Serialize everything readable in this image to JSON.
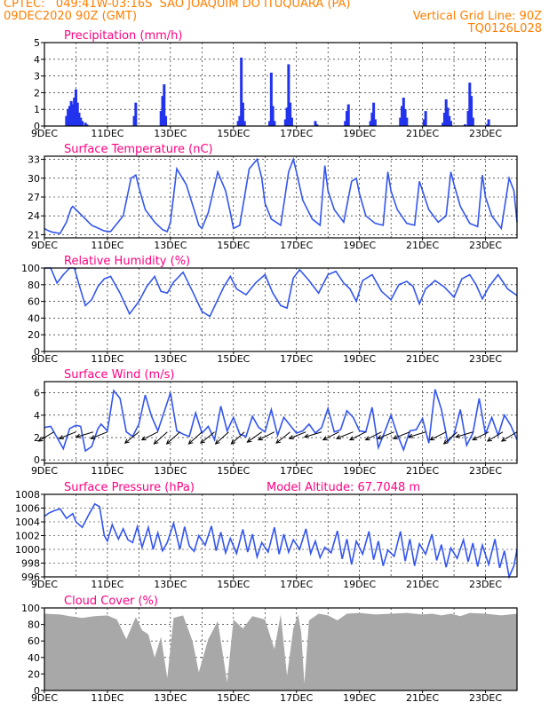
{
  "header": {
    "line1": "CPTEC:   049:41W-03:16S  SAO JOAQUIM DO ITUQUARA (PA)",
    "line2_left": "09DEC2020 90Z (GMT)",
    "line2_right": "Vertical Grid Line: 90Z",
    "line3_right": "TQ0126L028"
  },
  "x_axis": {
    "labels": [
      "9DEC",
      "11DEC",
      "13DEC",
      "15DEC",
      "17DEC",
      "19DEC",
      "21DEC",
      "23DEC"
    ],
    "label_days": [
      0,
      2,
      4,
      6,
      8,
      10,
      12,
      14
    ],
    "total_days": 15,
    "vertical_grid": "90Z"
  },
  "colors": {
    "line": "#3355ee",
    "bars": "#2233ee",
    "cloud": "#a8a8a8",
    "title": "#ff0080",
    "header": "#ff7f00"
  },
  "chart_data": [
    {
      "type": "bar",
      "title": "Precipitation (mm/h)",
      "ylim": [
        0,
        5
      ],
      "yticks": [
        0,
        1,
        2,
        3,
        4,
        5
      ],
      "x_unit": "days since 09DEC 00Z",
      "x": [
        0.7,
        0.75,
        0.8,
        0.85,
        0.9,
        0.95,
        1.0,
        1.05,
        1.1,
        1.15,
        1.2,
        1.3,
        1.35,
        2.85,
        2.9,
        3.7,
        3.75,
        3.8,
        3.85,
        6.15,
        6.2,
        6.25,
        6.3,
        6.35,
        7.15,
        7.2,
        7.25,
        7.3,
        7.65,
        7.7,
        7.75,
        7.8,
        7.85,
        8.6,
        8.65,
        9.55,
        9.6,
        9.65,
        10.35,
        10.4,
        10.45,
        10.5,
        11.3,
        11.35,
        11.4,
        11.45,
        11.5,
        12.05,
        12.1,
        12.65,
        12.7,
        12.75,
        12.8,
        12.85,
        12.9,
        13.35,
        13.45,
        13.5,
        13.55,
        13.6,
        14.05,
        14.1
      ],
      "values": [
        0.6,
        1.0,
        1.2,
        1.5,
        1.3,
        1.7,
        2.2,
        1.4,
        0.8,
        0.5,
        0.3,
        0.2,
        0.1,
        0.6,
        1.4,
        0.9,
        1.8,
        2.5,
        0.6,
        0.3,
        0.6,
        4.1,
        1.4,
        0.3,
        0.3,
        3.2,
        1.2,
        0.3,
        0.4,
        1.1,
        3.7,
        1.4,
        0.5,
        0.3,
        0.1,
        0.3,
        0.9,
        1.3,
        0.3,
        0.8,
        1.4,
        0.4,
        0.5,
        1.2,
        1.7,
        1.0,
        0.5,
        0.4,
        0.9,
        0.2,
        0.8,
        1.6,
        1.1,
        0.6,
        0.3,
        0.1,
        0.9,
        2.6,
        1.8,
        0.5,
        0.1,
        0.4
      ]
    },
    {
      "type": "line",
      "title": "Surface Temperature (nC)",
      "ylim": [
        20.5,
        33.5
      ],
      "yticks": [
        21,
        24,
        27,
        30,
        33
      ],
      "x": [
        0,
        0.1,
        0.25,
        0.5,
        0.7,
        0.85,
        0.9,
        1.0,
        1.2,
        1.5,
        1.9,
        2.1,
        2.5,
        2.75,
        2.9,
        3.0,
        3.2,
        3.5,
        3.75,
        3.9,
        4.0,
        4.2,
        4.5,
        4.75,
        4.9,
        5.0,
        5.2,
        5.5,
        5.75,
        5.9,
        6.0,
        6.2,
        6.5,
        6.75,
        6.9,
        7.0,
        7.2,
        7.5,
        7.75,
        7.9,
        8.0,
        8.2,
        8.5,
        8.75,
        8.9,
        9.0,
        9.2,
        9.5,
        9.75,
        9.9,
        10.0,
        10.2,
        10.5,
        10.75,
        10.9,
        11.0,
        11.2,
        11.5,
        11.75,
        11.9,
        12.0,
        12.2,
        12.5,
        12.75,
        12.9,
        13.0,
        13.2,
        13.5,
        13.75,
        13.9,
        14.0,
        14.2,
        14.5,
        14.75,
        14.9,
        15.0
      ],
      "values": [
        22.0,
        21.7,
        21.4,
        21.2,
        23.0,
        25.2,
        25.5,
        25.0,
        24.0,
        22.5,
        21.6,
        21.5,
        24.0,
        30.0,
        30.5,
        28.5,
        25.0,
        23.0,
        21.8,
        21.5,
        23.0,
        31.5,
        29.0,
        25.0,
        22.5,
        22.0,
        24.5,
        31.0,
        28.0,
        24.5,
        22.0,
        22.5,
        31.5,
        33.0,
        30.0,
        26.0,
        23.5,
        22.5,
        31.0,
        33.0,
        31.0,
        26.5,
        23.5,
        22.5,
        32.0,
        28.0,
        25.0,
        23.0,
        29.5,
        30.0,
        27.5,
        24.0,
        22.8,
        22.5,
        31.0,
        28.0,
        25.0,
        22.8,
        22.5,
        29.5,
        28.0,
        25.0,
        23.0,
        24.0,
        31.0,
        29.0,
        25.5,
        22.8,
        22.3,
        30.5,
        27.0,
        24.0,
        22.0,
        30.0,
        28.0,
        23.0
      ]
    },
    {
      "type": "line",
      "title": "Relative Humidity (%)",
      "ylim": [
        0,
        100
      ],
      "yticks": [
        0,
        20,
        40,
        60,
        80,
        100
      ],
      "x": [
        0,
        0.2,
        0.4,
        0.6,
        0.8,
        0.95,
        1.1,
        1.3,
        1.5,
        1.7,
        1.9,
        2.1,
        2.4,
        2.7,
        3.0,
        3.25,
        3.5,
        3.7,
        3.9,
        4.1,
        4.4,
        4.7,
        5.0,
        5.25,
        5.5,
        5.7,
        5.9,
        6.1,
        6.4,
        6.7,
        7.0,
        7.25,
        7.5,
        7.7,
        7.9,
        8.1,
        8.4,
        8.7,
        9.0,
        9.25,
        9.5,
        9.7,
        9.9,
        10.1,
        10.4,
        10.7,
        11.0,
        11.25,
        11.5,
        11.7,
        11.9,
        12.1,
        12.4,
        12.7,
        13.0,
        13.25,
        13.5,
        13.7,
        13.9,
        14.1,
        14.4,
        14.7,
        15.0
      ],
      "values": [
        100,
        100,
        82,
        92,
        100,
        100,
        80,
        55,
        62,
        78,
        87,
        90,
        70,
        45,
        60,
        78,
        90,
        72,
        70,
        83,
        95,
        72,
        48,
        42,
        62,
        78,
        90,
        75,
        68,
        82,
        92,
        70,
        55,
        52,
        88,
        98,
        85,
        70,
        92,
        96,
        82,
        75,
        60,
        85,
        92,
        72,
        62,
        80,
        84,
        78,
        57,
        75,
        85,
        77,
        65,
        87,
        92,
        80,
        63,
        77,
        92,
        75,
        67
      ]
    },
    {
      "type": "line",
      "title": "Surface Wind (m/s)",
      "ylim": [
        -0.3,
        7.0
      ],
      "yticks": [
        0,
        2,
        4,
        6
      ],
      "x": [
        0,
        0.2,
        0.4,
        0.6,
        0.8,
        1.0,
        1.15,
        1.3,
        1.5,
        1.7,
        1.8,
        2.0,
        2.2,
        2.4,
        2.6,
        2.8,
        3.0,
        3.2,
        3.4,
        3.6,
        3.8,
        4.0,
        4.2,
        4.4,
        4.6,
        4.8,
        5.0,
        5.2,
        5.4,
        5.6,
        5.8,
        6.0,
        6.2,
        6.4,
        6.6,
        6.8,
        7.0,
        7.2,
        7.4,
        7.6,
        7.8,
        8.0,
        8.2,
        8.4,
        8.6,
        8.8,
        9.0,
        9.2,
        9.4,
        9.6,
        9.8,
        10.0,
        10.2,
        10.4,
        10.6,
        10.8,
        11.0,
        11.2,
        11.4,
        11.6,
        11.8,
        12.0,
        12.2,
        12.4,
        12.6,
        12.8,
        13.0,
        13.2,
        13.4,
        13.6,
        13.8,
        14.0,
        14.2,
        14.4,
        14.6,
        14.8,
        15.0
      ],
      "values": [
        2.9,
        3.0,
        2.0,
        1.0,
        2.8,
        3.1,
        3.0,
        0.8,
        1.2,
        2.8,
        3.2,
        2.6,
        6.2,
        5.5,
        2.5,
        2.1,
        3.2,
        5.8,
        3.9,
        2.6,
        4.3,
        6.0,
        2.6,
        2.3,
        2.1,
        4.2,
        2.4,
        3.0,
        1.8,
        4.8,
        2.6,
        3.8,
        2.3,
        2.1,
        3.9,
        2.9,
        2.5,
        4.5,
        2.2,
        3.8,
        3.1,
        2.4,
        2.6,
        3.2,
        2.4,
        2.9,
        4.6,
        2.5,
        2.7,
        4.4,
        3.8,
        2.6,
        2.5,
        4.7,
        1.1,
        2.5,
        4.0,
        2.3,
        0.9,
        2.6,
        2.7,
        3.7,
        1.5,
        6.3,
        4.5,
        1.6,
        2.3,
        4.5,
        1.3,
        2.4,
        5.5,
        2.3,
        3.8,
        2.2,
        4.0,
        3.1,
        1.8
      ],
      "arrows": [
        {
          "x": 0.3,
          "u": -1,
          "v": -0.6
        },
        {
          "x": 1.0,
          "u": -1,
          "v": -0.4
        },
        {
          "x": 1.55,
          "u": -1,
          "v": -0.3
        },
        {
          "x": 2.0,
          "u": -1,
          "v": -0.4
        },
        {
          "x": 3.0,
          "u": -1,
          "v": -0.8
        },
        {
          "x": 3.6,
          "u": -1,
          "v": -0.5
        },
        {
          "x": 3.9,
          "u": -1,
          "v": -0.9
        },
        {
          "x": 4.3,
          "u": -1,
          "v": -0.9
        },
        {
          "x": 5.0,
          "u": -1,
          "v": -0.9
        },
        {
          "x": 5.4,
          "u": -1,
          "v": -0.8
        },
        {
          "x": 5.85,
          "u": -1,
          "v": -0.9
        },
        {
          "x": 6.35,
          "u": -1,
          "v": -0.9
        },
        {
          "x": 6.9,
          "u": -1,
          "v": -0.7
        },
        {
          "x": 7.3,
          "u": -1,
          "v": -0.5
        },
        {
          "x": 7.8,
          "u": -1,
          "v": -0.8
        },
        {
          "x": 8.3,
          "u": -1,
          "v": -0.4
        },
        {
          "x": 8.8,
          "u": -1,
          "v": -0.3
        },
        {
          "x": 9.35,
          "u": -1,
          "v": -0.5
        },
        {
          "x": 9.8,
          "u": -1,
          "v": -0.4
        },
        {
          "x": 10.2,
          "u": -1,
          "v": -0.5
        },
        {
          "x": 10.7,
          "u": -1,
          "v": -0.5
        },
        {
          "x": 11.1,
          "u": -1,
          "v": -0.4
        },
        {
          "x": 11.6,
          "u": -1,
          "v": -0.4
        },
        {
          "x": 12.1,
          "u": -1,
          "v": -0.3
        },
        {
          "x": 12.75,
          "u": -1,
          "v": -0.5
        },
        {
          "x": 13.1,
          "u": -1,
          "v": -0.9
        },
        {
          "x": 13.6,
          "u": -1,
          "v": -0.3
        },
        {
          "x": 14.1,
          "u": -1,
          "v": -0.5
        },
        {
          "x": 14.55,
          "u": -1,
          "v": -0.6
        },
        {
          "x": 15.0,
          "u": -1,
          "v": -0.6
        }
      ]
    },
    {
      "type": "line",
      "title": "Surface Pressure (hPa)",
      "annotation": "Model Altitude: 67.7048  m",
      "ylim": [
        996,
        1008
      ],
      "yticks": [
        996,
        998,
        1000,
        1002,
        1004,
        1006,
        1008
      ],
      "x": [
        0,
        0.15,
        0.3,
        0.5,
        0.7,
        0.9,
        1.0,
        1.2,
        1.4,
        1.6,
        1.75,
        1.9,
        2.0,
        2.15,
        2.35,
        2.5,
        2.65,
        2.8,
        2.95,
        3.1,
        3.3,
        3.45,
        3.6,
        3.75,
        3.9,
        4.1,
        4.3,
        4.45,
        4.6,
        4.75,
        4.9,
        5.1,
        5.3,
        5.45,
        5.6,
        5.75,
        5.9,
        6.1,
        6.3,
        6.45,
        6.6,
        6.75,
        6.9,
        7.1,
        7.3,
        7.45,
        7.6,
        7.75,
        7.9,
        8.1,
        8.3,
        8.45,
        8.6,
        8.75,
        8.9,
        9.1,
        9.3,
        9.45,
        9.6,
        9.75,
        9.9,
        10.1,
        10.3,
        10.45,
        10.6,
        10.75,
        10.9,
        11.1,
        11.3,
        11.45,
        11.6,
        11.75,
        11.9,
        12.1,
        12.3,
        12.45,
        12.6,
        12.75,
        12.9,
        13.1,
        13.3,
        13.45,
        13.6,
        13.75,
        13.9,
        14.1,
        14.3,
        14.45,
        14.6,
        14.75,
        14.9,
        15.0
      ],
      "values": [
        1004.8,
        1005.3,
        1005.6,
        1005.9,
        1004.5,
        1005.2,
        1004.0,
        1003.2,
        1005.0,
        1006.6,
        1006.2,
        1002.0,
        1001.2,
        1003.6,
        1001.5,
        1003.0,
        1001.4,
        1001.0,
        1003.3,
        1000.3,
        1003.2,
        1000.0,
        1002.4,
        999.8,
        1001.0,
        1003.8,
        1000.0,
        1003.3,
        1000.5,
        999.7,
        1002.0,
        1000.6,
        1003.4,
        999.8,
        1002.5,
        999.5,
        1001.6,
        999.4,
        1002.9,
        999.6,
        1002.2,
        998.9,
        1001.0,
        999.6,
        1003.2,
        999.3,
        1002.2,
        999.6,
        1001.4,
        1000.0,
        1003.0,
        999.4,
        1001.2,
        998.8,
        1000.3,
        999.5,
        1002.7,
        998.6,
        1001.5,
        997.8,
        1001.2,
        999.3,
        1002.6,
        998.5,
        1001.2,
        997.6,
        999.9,
        999.0,
        1002.6,
        998.3,
        1001.5,
        997.6,
        1000.8,
        999.3,
        1002.2,
        998.4,
        1000.7,
        997.4,
        1000.2,
        998.7,
        1001.4,
        998.2,
        1000.9,
        997.5,
        1000.6,
        997.8,
        1001.5,
        997.3,
        999.8,
        996.0,
        997.6,
        1000.0
      ]
    },
    {
      "type": "area",
      "title": "Cloud Cover (%)",
      "ylim": [
        0,
        100
      ],
      "yticks": [
        0,
        20,
        40,
        60,
        80,
        100
      ],
      "x": [
        0,
        0.5,
        0.8,
        1.2,
        1.6,
        2.0,
        2.3,
        2.6,
        2.9,
        3.1,
        3.3,
        3.5,
        3.7,
        3.9,
        4.1,
        4.4,
        4.7,
        4.9,
        5.2,
        5.5,
        5.8,
        6.0,
        6.3,
        6.6,
        7.0,
        7.3,
        7.5,
        7.7,
        7.9,
        8.05,
        8.15,
        8.25,
        8.4,
        8.7,
        9.0,
        9.3,
        9.6,
        10.0,
        10.5,
        11.0,
        11.5,
        12.0,
        12.3,
        12.6,
        12.9,
        13.2,
        13.5,
        14.0,
        14.5,
        15.0
      ],
      "values": [
        93,
        92,
        90,
        88,
        90,
        91,
        86,
        62,
        89,
        73,
        68,
        40,
        65,
        15,
        88,
        91,
        60,
        22,
        62,
        84,
        10,
        86,
        75,
        90,
        86,
        50,
        92,
        18,
        75,
        92,
        70,
        8,
        85,
        93,
        91,
        85,
        93,
        94,
        92,
        93,
        94,
        92,
        93,
        91,
        93,
        90,
        94,
        93,
        91,
        93
      ]
    }
  ]
}
